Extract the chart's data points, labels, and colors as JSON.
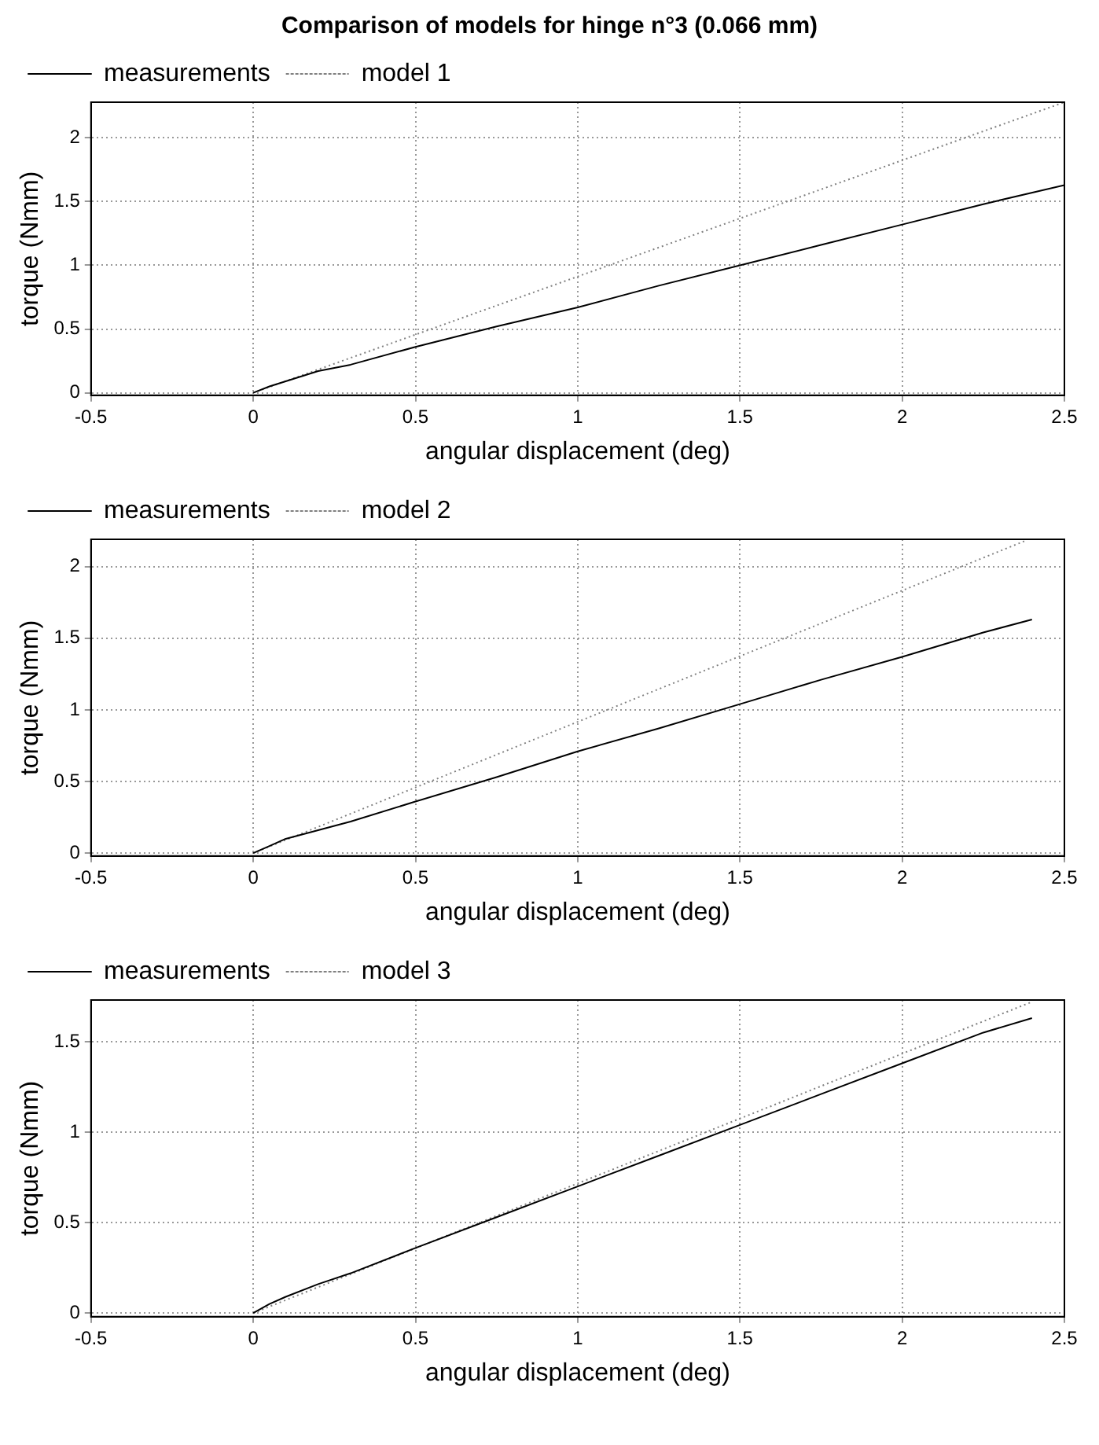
{
  "chart_data": [
    {
      "type": "line",
      "title": "Comparison of models for hinge n°3 (0.066 mm)",
      "xlabel": "angular displacement (deg)",
      "ylabel": "torque (Nmm)",
      "xlim": [
        -0.5,
        2.5
      ],
      "xticks": [
        -0.5,
        0,
        0.5,
        1,
        1.5,
        2,
        2.5
      ],
      "ylim": [
        -0.02,
        2.28
      ],
      "yticks": [
        0,
        0.5,
        1,
        1.5,
        2
      ],
      "grid": true,
      "legend": "top left",
      "marker": "none",
      "series": [
        {
          "name": "measurements",
          "color": "#000000",
          "line_style": "solid",
          "x": [
            0,
            0.05,
            0.1,
            0.2,
            0.3,
            0.5,
            0.75,
            1,
            1.25,
            1.5,
            1.75,
            2,
            2.25,
            2.5
          ],
          "values": [
            0,
            0.05,
            0.09,
            0.17,
            0.22,
            0.36,
            0.52,
            0.67,
            0.84,
            1.0,
            1.16,
            1.32,
            1.48,
            1.63
          ]
        },
        {
          "name": "model 1",
          "color": "#808080",
          "line_style": "dotted",
          "x": [
            0,
            2.5
          ],
          "values": [
            0,
            2.28
          ]
        }
      ]
    },
    {
      "type": "line",
      "xlabel": "angular displacement (deg)",
      "ylabel": "torque (Nmm)",
      "xlim": [
        -0.5,
        2.5
      ],
      "xticks": [
        -0.5,
        0,
        0.5,
        1,
        1.5,
        2,
        2.5
      ],
      "ylim": [
        -0.02,
        2.19
      ],
      "yticks": [
        0,
        0.5,
        1,
        1.5,
        2
      ],
      "grid": true,
      "legend": "top left",
      "marker": "none",
      "series": [
        {
          "name": "measurements",
          "color": "#000000",
          "line_style": "solid",
          "x": [
            0,
            0.05,
            0.1,
            0.2,
            0.3,
            0.5,
            0.75,
            1,
            1.25,
            1.5,
            1.75,
            2,
            2.25,
            2.4
          ],
          "values": [
            0,
            0.05,
            0.1,
            0.16,
            0.22,
            0.36,
            0.53,
            0.71,
            0.87,
            1.04,
            1.21,
            1.37,
            1.54,
            1.63
          ]
        },
        {
          "name": "model 2",
          "color": "#808080",
          "line_style": "dotted",
          "x": [
            0,
            2.38
          ],
          "values": [
            0,
            2.18
          ]
        }
      ]
    },
    {
      "type": "line",
      "xlabel": "angular displacement (deg)",
      "ylabel": "torque (Nmm)",
      "xlim": [
        -0.5,
        2.5
      ],
      "xticks": [
        -0.5,
        0,
        0.5,
        1,
        1.5,
        2,
        2.5
      ],
      "ylim": [
        -0.02,
        1.73
      ],
      "yticks": [
        0,
        0.5,
        1,
        1.5
      ],
      "grid": true,
      "legend": "top left",
      "marker": "none",
      "series": [
        {
          "name": "measurements",
          "color": "#000000",
          "line_style": "solid",
          "x": [
            0,
            0.05,
            0.1,
            0.2,
            0.3,
            0.5,
            0.75,
            1,
            1.25,
            1.5,
            1.75,
            2,
            2.25,
            2.4
          ],
          "values": [
            0,
            0.05,
            0.09,
            0.16,
            0.22,
            0.36,
            0.53,
            0.7,
            0.87,
            1.04,
            1.21,
            1.38,
            1.55,
            1.63
          ]
        },
        {
          "name": "model 3",
          "color": "#808080",
          "line_style": "dotted",
          "x": [
            0,
            2.4
          ],
          "values": [
            0,
            1.72
          ]
        }
      ]
    }
  ]
}
